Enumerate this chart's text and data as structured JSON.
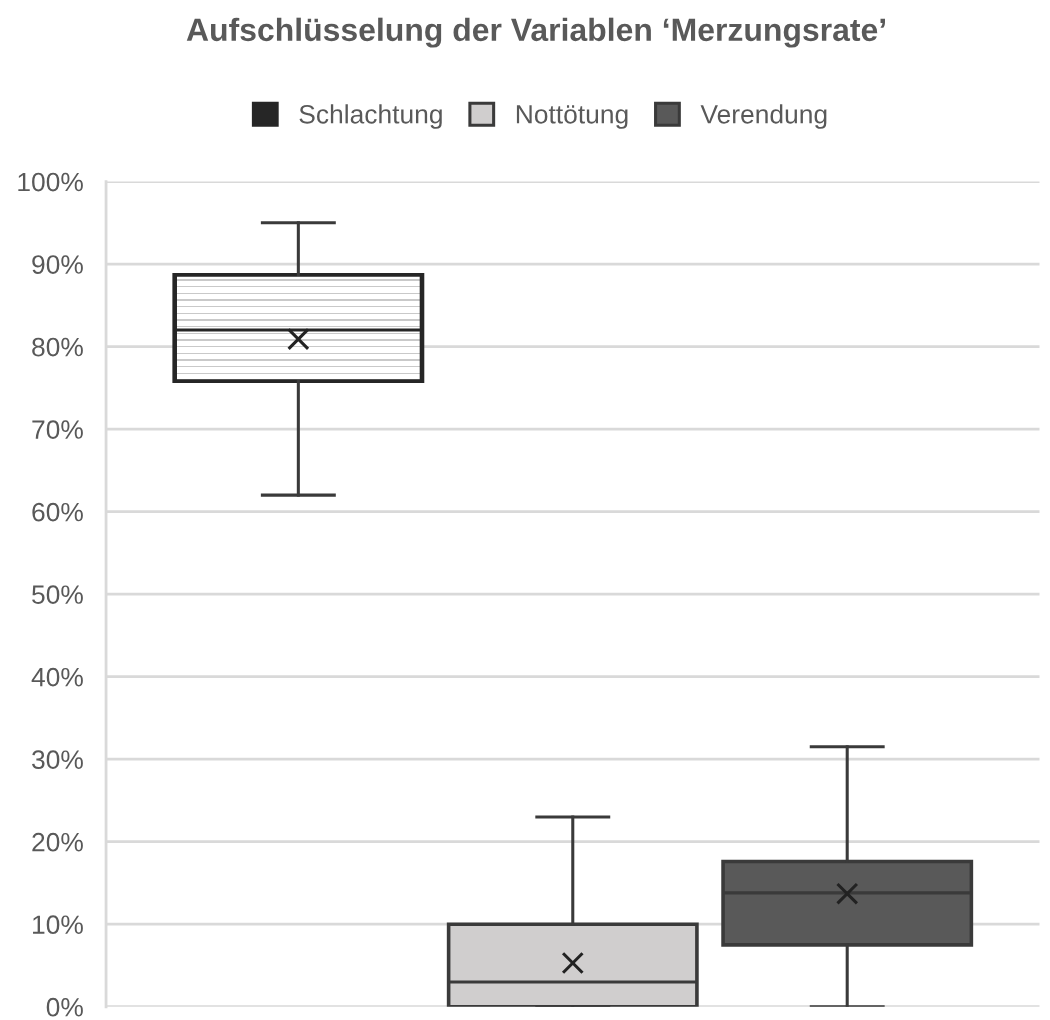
{
  "chart_data": {
    "type": "box",
    "title": "Aufschlüsselung der Variablen ‘Merzungsrate’",
    "categories": [
      null
    ],
    "series": [
      {
        "name": "Schlachtung",
        "color": "#262626",
        "boxes": [
          {
            "low": 62,
            "q1": 75.8,
            "median": 82,
            "q3": 88.7,
            "high": 95,
            "mean": 80.9
          }
        ]
      },
      {
        "name": "Nottötung",
        "color": "#d0cece",
        "boxes": [
          {
            "low": 0,
            "q1": 0,
            "median": 3,
            "q3": 10,
            "high": 23,
            "mean": 5.3
          }
        ]
      },
      {
        "name": "Verendung",
        "color": "#595959",
        "boxes": [
          {
            "low": 0,
            "q1": 7.5,
            "median": 13.8,
            "q3": 17.6,
            "high": 31.5,
            "mean": 13.7
          }
        ]
      }
    ],
    "ylim": [
      0,
      100
    ],
    "yticks": [
      {
        "value": 0,
        "label": "0%"
      },
      {
        "value": 10,
        "label": "10%"
      },
      {
        "value": 20,
        "label": "20%"
      },
      {
        "value": 30,
        "label": "30%"
      },
      {
        "value": 40,
        "label": "40%"
      },
      {
        "value": 50,
        "label": "50%"
      },
      {
        "value": 60,
        "label": "60%"
      },
      {
        "value": 70,
        "label": "70%"
      },
      {
        "value": 80,
        "label": "80%"
      },
      {
        "value": 90,
        "label": "90%"
      },
      {
        "value": 100,
        "label": "100%"
      }
    ],
    "grid": "y",
    "legend": "top",
    "tick_labels": "y",
    "marker": "cross"
  }
}
